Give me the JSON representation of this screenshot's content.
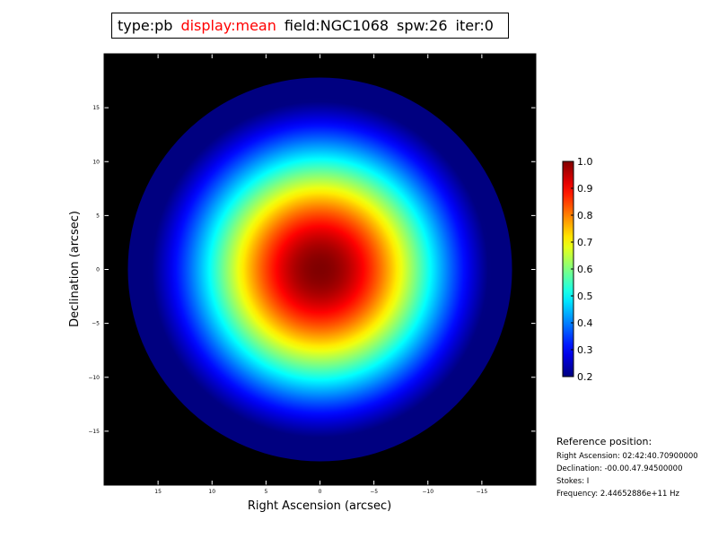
{
  "header": {
    "type": "type:pb",
    "display": "display:mean",
    "field": "field:NGC1068",
    "spw": "spw:26",
    "iter": "iter:0",
    "display_color": "#ff0000"
  },
  "chart_data": {
    "type": "heatmap",
    "description_of_values": "primary beam response, peak at center falling radially",
    "xlabel": "Right Ascension (arcsec)",
    "ylabel": "Declination (arcsec)",
    "xlim": [
      20,
      -20
    ],
    "ylim": [
      -20,
      20
    ],
    "x_ticks": [
      15,
      10,
      5,
      0,
      -5,
      -10,
      -15
    ],
    "y_ticks": [
      15,
      10,
      5,
      0,
      -5,
      -10,
      -15
    ],
    "x_tick_labels": [
      "15",
      "10",
      "5",
      "0",
      "−5",
      "−10",
      "−15"
    ],
    "y_tick_labels": [
      "15",
      "10",
      "5",
      "0",
      "−5",
      "−10",
      "−15"
    ],
    "beam_radius_arcsec": 17.8,
    "beam_fwhm_arcsec": 20.5,
    "peak_value": 1.0,
    "cutoff_value": 0.2,
    "background_color": "#000000",
    "colormap": "jet",
    "colorbar": {
      "min": 0.2,
      "max": 1.0,
      "ticks": [
        0.2,
        0.3,
        0.4,
        0.5,
        0.6,
        0.7,
        0.8,
        0.9,
        1.0
      ],
      "tick_labels": [
        "0.2",
        "0.3",
        "0.4",
        "0.5",
        "0.6",
        "0.7",
        "0.8",
        "0.9",
        "1.0"
      ]
    }
  },
  "reference": {
    "title": "Reference position:",
    "ra": "Right Ascension: 02:42:40.70900000",
    "dec": "Declination: -00.00.47.94500000",
    "stokes": "Stokes: I",
    "freq": "Frequency: 2.44652886e+11 Hz"
  }
}
